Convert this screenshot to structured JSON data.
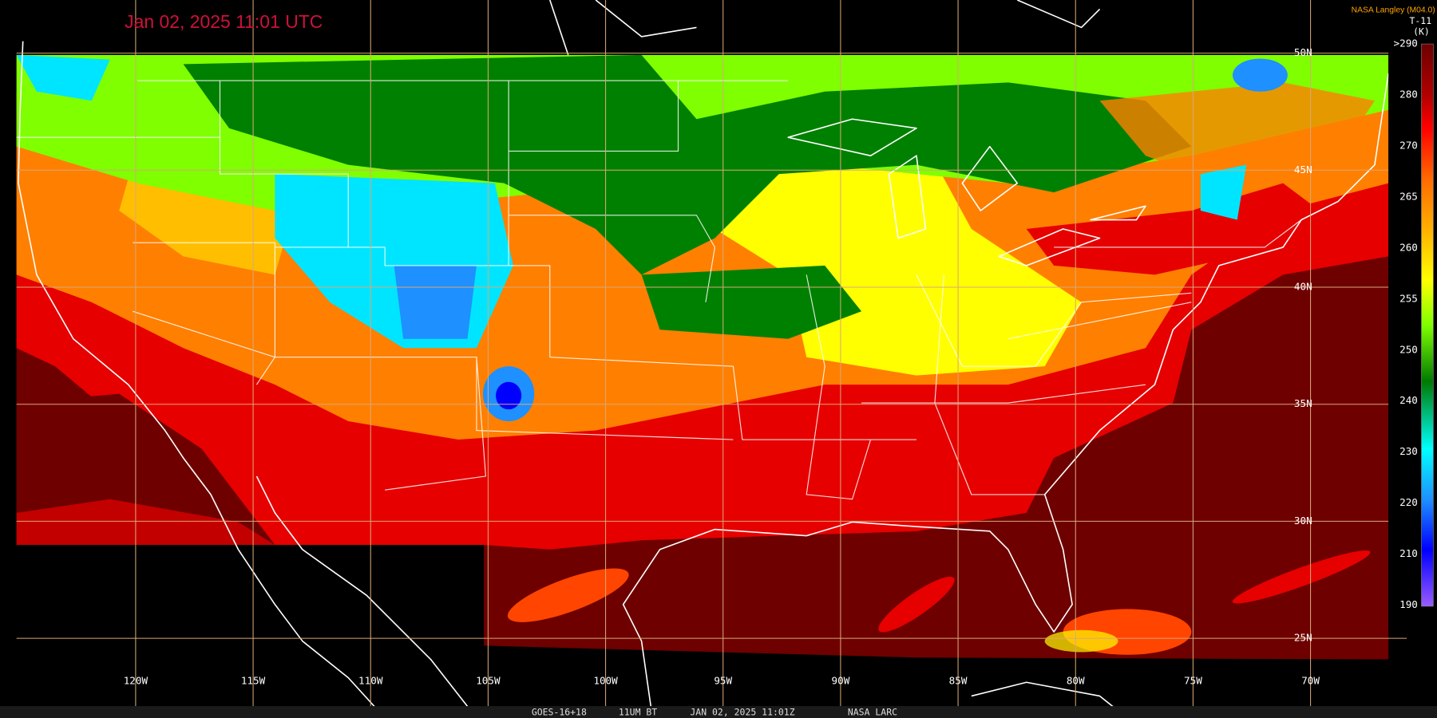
{
  "header": {
    "timestamp": "Jan 02, 2025 11:01 UTC",
    "credit": "NASA Langley (M04.0)"
  },
  "colorbar": {
    "product": "T-11",
    "unit": "(K)",
    "labels": [
      ">290",
      280,
      270,
      265,
      260,
      255,
      250,
      240,
      230,
      220,
      210,
      190
    ]
  },
  "grid": {
    "latitudes": [
      "50N",
      "45N",
      "40N",
      "35N",
      "30N",
      "25N"
    ],
    "longitudes": [
      "120W",
      "115W",
      "110W",
      "105W",
      "100W",
      "95W",
      "90W",
      "85W",
      "80W",
      "75W",
      "70W"
    ]
  },
  "footer": [
    "GOES-16+18",
    "11UM BT",
    "JAN 02, 2025 11:01Z",
    "NASA LARC"
  ]
}
